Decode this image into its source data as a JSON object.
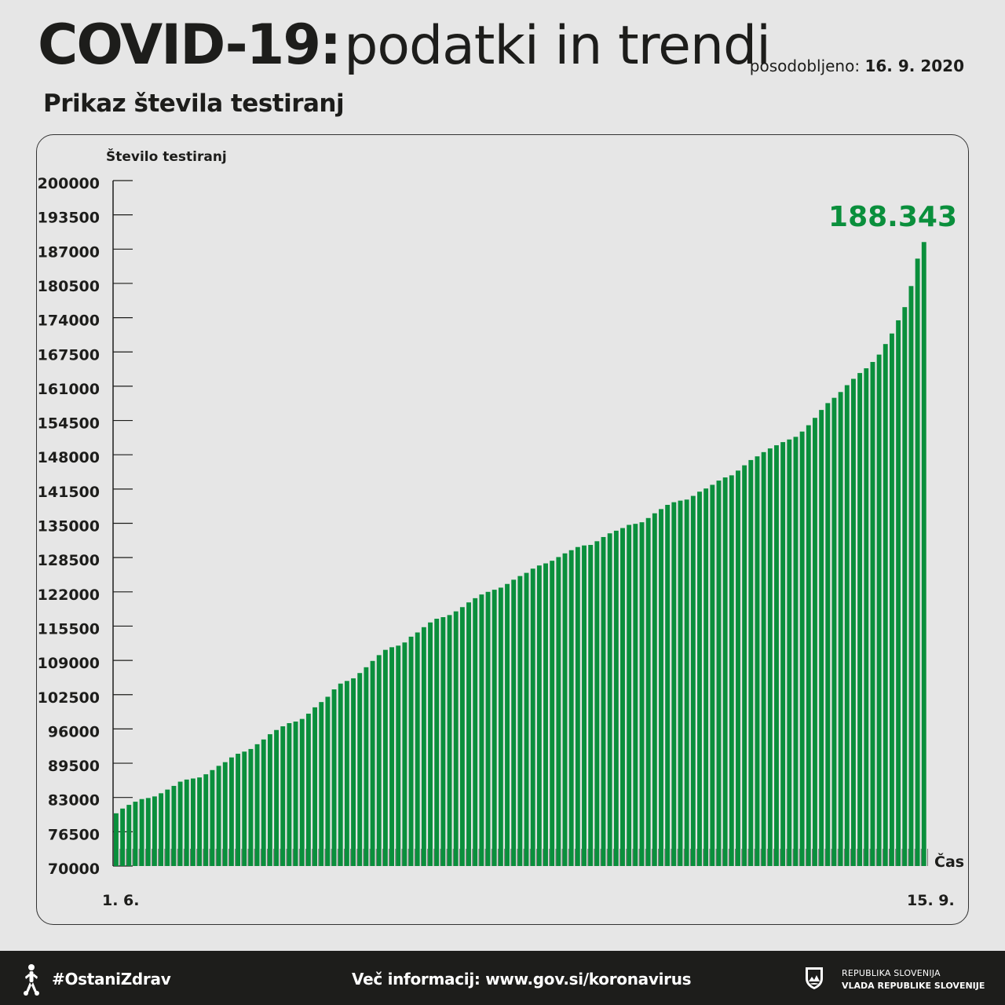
{
  "header": {
    "title_strong": "COVID-19:",
    "title_light": "podatki in trendi",
    "updated_label": "posodobljeno:",
    "updated_date": "16. 9. 2020",
    "subtitle": "Prikaz števila testiranj"
  },
  "colors": {
    "bar": "#0a8f3c",
    "highlight": "#0a8f3c",
    "text": "#1d1d1b",
    "background": "#e6e6e6",
    "footer": "#1d1d1b"
  },
  "chart_data": {
    "type": "bar",
    "title": "Prikaz števila testiranj",
    "ylabel": "Število testiranj",
    "xlabel": "Čas",
    "ylim": [
      70000,
      200000
    ],
    "yticks": [
      "200000",
      "193500",
      "187000",
      "180500",
      "174000",
      "167500",
      "161000",
      "154500",
      "148000",
      "141500",
      "135000",
      "128500",
      "122000",
      "115500",
      "109000",
      "102500",
      "96000",
      "89500",
      "83000",
      "76500",
      "70000"
    ],
    "x_start": "1. 6.",
    "x_end": "15. 9.",
    "highlight_value": "188.343",
    "grid": false,
    "series": [
      {
        "values": [
          80000,
          80900,
          81600,
          82200,
          82700,
          82900,
          83200,
          83800,
          84500,
          85200,
          86000,
          86400,
          86600,
          86800,
          87400,
          88200,
          89000,
          89700,
          90600,
          91300,
          91700,
          92200,
          93100,
          94000,
          95000,
          95800,
          96500,
          97100,
          97400,
          97900,
          98900,
          100100,
          101100,
          102100,
          103500,
          104600,
          105100,
          105600,
          106600,
          107700,
          108900,
          110000,
          111000,
          111500,
          111800,
          112400,
          113500,
          114300,
          115300,
          116200,
          116900,
          117200,
          117600,
          118300,
          119100,
          120000,
          120800,
          121500,
          122000,
          122400,
          122800,
          123500,
          124300,
          125000,
          125600,
          126400,
          127000,
          127400,
          127900,
          128600,
          129300,
          129900,
          130500,
          130800,
          130900,
          131600,
          132400,
          133100,
          133600,
          134100,
          134700,
          134900,
          135200,
          136000,
          136900,
          137700,
          138500,
          139000,
          139300,
          139500,
          140200,
          141000,
          141600,
          142300,
          143100,
          143700,
          144100,
          145000,
          146000,
          147000,
          147700,
          148500,
          149200,
          149800,
          150400,
          150900,
          151400,
          152400,
          153600,
          155000,
          156500,
          157800,
          158800,
          159900,
          161200,
          162400,
          163500,
          164400,
          165600,
          167000,
          169000,
          171000,
          173500,
          176000,
          180000,
          185200,
          188343
        ]
      }
    ]
  },
  "footer": {
    "hashtag": "#OstaniZdrav",
    "info": "Več informacij: www.gov.si/koronavirus",
    "gov_line1": "REPUBLIKA SLOVENIJA",
    "gov_line2": "VLADA REPUBLIKE SLOVENIJE"
  }
}
